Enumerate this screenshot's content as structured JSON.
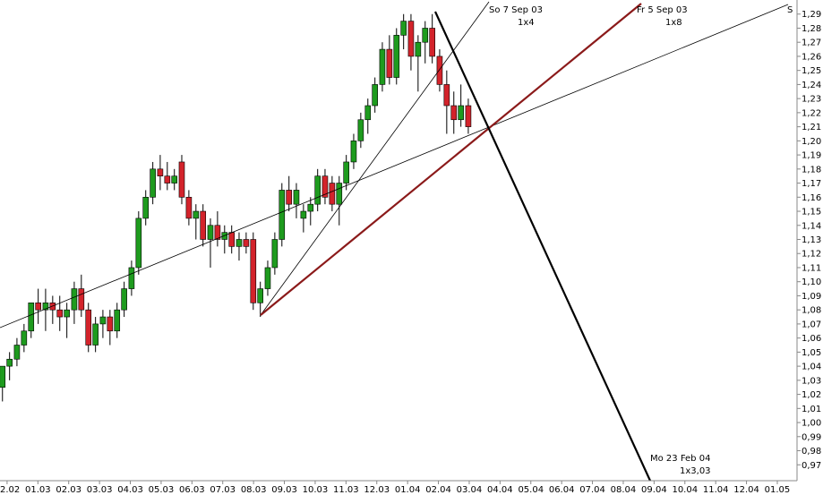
{
  "chart_data": {
    "type": "candlestick",
    "up_color": "#1e9b1e",
    "down_color": "#d3232b",
    "xlim": [
      -0.23,
      25.64
    ],
    "ylim": [
      0.96,
      1.3
    ],
    "xticks": [
      {
        "value": 0,
        "label": "12.02"
      },
      {
        "value": 1,
        "label": "01.03"
      },
      {
        "value": 2,
        "label": "02.03"
      },
      {
        "value": 3,
        "label": "03.03"
      },
      {
        "value": 4,
        "label": "04.03"
      },
      {
        "value": 5,
        "label": "05.03"
      },
      {
        "value": 6,
        "label": "06.03"
      },
      {
        "value": 7,
        "label": "07.03"
      },
      {
        "value": 8,
        "label": "08.03"
      },
      {
        "value": 9,
        "label": "09.03"
      },
      {
        "value": 10,
        "label": "10.03"
      },
      {
        "value": 11,
        "label": "11.03"
      },
      {
        "value": 12,
        "label": "12.03"
      },
      {
        "value": 13,
        "label": "01.04"
      },
      {
        "value": 14,
        "label": "02.04"
      },
      {
        "value": 15,
        "label": "03.04"
      },
      {
        "value": 16,
        "label": "04.04"
      },
      {
        "value": 17,
        "label": "05.04"
      },
      {
        "value": 18,
        "label": "06.04"
      },
      {
        "value": 19,
        "label": "07.04"
      },
      {
        "value": 20,
        "label": "08.04"
      },
      {
        "value": 21,
        "label": "09.04"
      },
      {
        "value": 22,
        "label": "10.04"
      },
      {
        "value": 23,
        "label": "11.04"
      },
      {
        "value": 24,
        "label": "12.04"
      },
      {
        "value": 25,
        "label": "01.05"
      }
    ],
    "yticks": [
      {
        "value": 0.97,
        "label": "0,97"
      },
      {
        "value": 0.98,
        "label": "0,98"
      },
      {
        "value": 0.99,
        "label": "0,99"
      },
      {
        "value": 1.0,
        "label": "1,00"
      },
      {
        "value": 1.01,
        "label": "1,01"
      },
      {
        "value": 1.02,
        "label": "1,02"
      },
      {
        "value": 1.03,
        "label": "1,03"
      },
      {
        "value": 1.04,
        "label": "1,04"
      },
      {
        "value": 1.05,
        "label": "1,05"
      },
      {
        "value": 1.06,
        "label": "1,06"
      },
      {
        "value": 1.07,
        "label": "1,07"
      },
      {
        "value": 1.08,
        "label": "1,08"
      },
      {
        "value": 1.09,
        "label": "1,09"
      },
      {
        "value": 1.1,
        "label": "1,10"
      },
      {
        "value": 1.11,
        "label": "1,11"
      },
      {
        "value": 1.12,
        "label": "1,12"
      },
      {
        "value": 1.13,
        "label": "1,13"
      },
      {
        "value": 1.14,
        "label": "1,14"
      },
      {
        "value": 1.15,
        "label": "1,15"
      },
      {
        "value": 1.16,
        "label": "1,16"
      },
      {
        "value": 1.17,
        "label": "1,17"
      },
      {
        "value": 1.18,
        "label": "1,18"
      },
      {
        "value": 1.19,
        "label": "1,19"
      },
      {
        "value": 1.2,
        "label": "1,20"
      },
      {
        "value": 1.21,
        "label": "1,21"
      },
      {
        "value": 1.22,
        "label": "1,22"
      },
      {
        "value": 1.23,
        "label": "1,23"
      },
      {
        "value": 1.24,
        "label": "1,24"
      },
      {
        "value": 1.25,
        "label": "1,25"
      },
      {
        "value": 1.26,
        "label": "1,26"
      },
      {
        "value": 1.27,
        "label": "1,27"
      },
      {
        "value": 1.28,
        "label": "1,28"
      },
      {
        "value": 1.29,
        "label": "1,29"
      }
    ],
    "x": [
      -0.15,
      0.08,
      0.32,
      0.55,
      0.78,
      1.01,
      1.25,
      1.48,
      1.71,
      1.94,
      2.18,
      2.41,
      2.64,
      2.87,
      3.11,
      3.34,
      3.57,
      3.8,
      4.04,
      4.27,
      4.5,
      4.73,
      4.97,
      5.2,
      5.43,
      5.67,
      5.9,
      6.13,
      6.36,
      6.6,
      6.83,
      7.06,
      7.29,
      7.53,
      7.76,
      7.99,
      8.22,
      8.46,
      8.69,
      8.92,
      9.15,
      9.39,
      9.62,
      9.85,
      10.08,
      10.32,
      10.55,
      10.78,
      11.01,
      11.25,
      11.48,
      11.71,
      11.94,
      12.18,
      12.41,
      12.64,
      12.87,
      13.11,
      13.34,
      13.57,
      13.8,
      14.04,
      14.27,
      14.5,
      14.73,
      14.97
    ],
    "open": [
      1.025,
      1.04,
      1.045,
      1.055,
      1.065,
      1.085,
      1.08,
      1.085,
      1.08,
      1.075,
      1.08,
      1.095,
      1.08,
      1.055,
      1.07,
      1.075,
      1.065,
      1.08,
      1.095,
      1.11,
      1.145,
      1.16,
      1.18,
      1.175,
      1.17,
      1.185,
      1.16,
      1.145,
      1.15,
      1.13,
      1.14,
      1.13,
      1.135,
      1.125,
      1.13,
      1.13,
      1.085,
      1.095,
      1.11,
      1.13,
      1.165,
      1.155,
      1.145,
      1.15,
      1.155,
      1.175,
      1.17,
      1.155,
      1.17,
      1.185,
      1.2,
      1.215,
      1.225,
      1.24,
      1.265,
      1.245,
      1.275,
      1.285,
      1.26,
      1.27,
      1.28,
      1.26,
      1.24,
      1.225,
      1.215,
      1.225
    ],
    "high": [
      1.04,
      1.05,
      1.06,
      1.07,
      1.085,
      1.095,
      1.095,
      1.09,
      1.09,
      1.085,
      1.1,
      1.105,
      1.085,
      1.075,
      1.08,
      1.08,
      1.085,
      1.1,
      1.115,
      1.15,
      1.165,
      1.185,
      1.19,
      1.185,
      1.18,
      1.19,
      1.165,
      1.155,
      1.155,
      1.145,
      1.15,
      1.14,
      1.14,
      1.135,
      1.135,
      1.135,
      1.1,
      1.115,
      1.135,
      1.17,
      1.175,
      1.17,
      1.155,
      1.16,
      1.18,
      1.18,
      1.175,
      1.175,
      1.19,
      1.205,
      1.22,
      1.23,
      1.245,
      1.27,
      1.275,
      1.28,
      1.29,
      1.29,
      1.275,
      1.285,
      1.29,
      1.265,
      1.25,
      1.235,
      1.24,
      1.23
    ],
    "low": [
      1.015,
      1.03,
      1.04,
      1.05,
      1.06,
      1.07,
      1.065,
      1.07,
      1.065,
      1.06,
      1.07,
      1.075,
      1.05,
      1.05,
      1.06,
      1.055,
      1.06,
      1.075,
      1.09,
      1.105,
      1.14,
      1.155,
      1.165,
      1.165,
      1.165,
      1.155,
      1.14,
      1.13,
      1.125,
      1.11,
      1.125,
      1.12,
      1.12,
      1.115,
      1.12,
      1.08,
      1.075,
      1.09,
      1.105,
      1.125,
      1.15,
      1.145,
      1.135,
      1.14,
      1.15,
      1.155,
      1.15,
      1.14,
      1.165,
      1.18,
      1.195,
      1.205,
      1.22,
      1.235,
      1.24,
      1.24,
      1.265,
      1.25,
      1.235,
      1.255,
      1.255,
      1.235,
      1.205,
      1.205,
      1.21,
      1.205
    ],
    "close": [
      1.04,
      1.045,
      1.055,
      1.065,
      1.085,
      1.08,
      1.085,
      1.08,
      1.075,
      1.08,
      1.095,
      1.08,
      1.055,
      1.07,
      1.075,
      1.065,
      1.08,
      1.095,
      1.11,
      1.145,
      1.16,
      1.18,
      1.175,
      1.17,
      1.175,
      1.16,
      1.145,
      1.15,
      1.13,
      1.14,
      1.13,
      1.135,
      1.125,
      1.13,
      1.125,
      1.085,
      1.095,
      1.11,
      1.13,
      1.165,
      1.155,
      1.165,
      1.15,
      1.155,
      1.175,
      1.16,
      1.155,
      1.17,
      1.185,
      1.2,
      1.215,
      1.225,
      1.24,
      1.265,
      1.245,
      1.275,
      1.285,
      1.26,
      1.27,
      1.28,
      1.26,
      1.24,
      1.225,
      1.215,
      1.225,
      1.21
    ],
    "annotations": [
      "So 7 Sep 03",
      "1x4",
      "Fr 5 Sep 03",
      "1x8",
      "S",
      "Mo 23 Feb 04",
      "1x3,03"
    ]
  }
}
